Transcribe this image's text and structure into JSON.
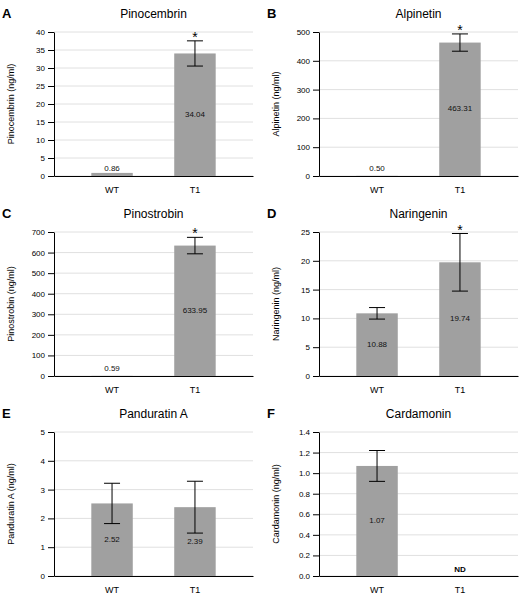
{
  "chart_data": [
    {
      "type": "bar",
      "panel_label": "A",
      "title": "Pinocembrin",
      "ylabel": "Pinocembrin (ng/ml)",
      "categories": [
        "WT",
        "T1"
      ],
      "values": [
        0.86,
        34.04
      ],
      "errors": [
        0.0,
        3.5
      ],
      "value_labels": [
        "0.86",
        "34.04"
      ],
      "significance": [
        null,
        "*"
      ],
      "nd_labels": [
        null,
        null
      ],
      "color": "#a0a0a0",
      "ylim": [
        0,
        40
      ],
      "yticks": [
        0,
        5,
        10,
        15,
        20,
        25,
        30,
        35,
        40
      ],
      "grid": true,
      "data_labels": true
    },
    {
      "type": "bar",
      "panel_label": "B",
      "title": "Alpinetin",
      "ylabel": "Alpinetin (ng/ml)",
      "categories": [
        "WT",
        "T1"
      ],
      "values": [
        0.5,
        463.31
      ],
      "errors": [
        0.0,
        30.0
      ],
      "value_labels": [
        "0.50",
        "463.31"
      ],
      "significance": [
        null,
        "*"
      ],
      "nd_labels": [
        null,
        null
      ],
      "color": "#a0a0a0",
      "ylim": [
        0,
        500
      ],
      "yticks": [
        0,
        100,
        200,
        300,
        400,
        500
      ],
      "grid": true,
      "data_labels": true
    },
    {
      "type": "bar",
      "panel_label": "C",
      "title": "Pinostrobin",
      "ylabel": "Pinostrobin (ng/ml)",
      "categories": [
        "WT",
        "T1"
      ],
      "values": [
        0.59,
        633.95
      ],
      "errors": [
        0.0,
        40.0
      ],
      "value_labels": [
        "0.59",
        "633.95"
      ],
      "significance": [
        null,
        "*"
      ],
      "nd_labels": [
        null,
        null
      ],
      "color": "#a0a0a0",
      "ylim": [
        0,
        700
      ],
      "yticks": [
        0,
        100,
        200,
        300,
        400,
        500,
        600,
        700
      ],
      "grid": true,
      "data_labels": true
    },
    {
      "type": "bar",
      "panel_label": "D",
      "title": "Naringenin",
      "ylabel": "Naringenin (ng/ml)",
      "categories": [
        "WT",
        "T1"
      ],
      "values": [
        10.88,
        19.74
      ],
      "errors": [
        1.0,
        5.0
      ],
      "value_labels": [
        "10.88",
        "19.74"
      ],
      "significance": [
        null,
        "*"
      ],
      "nd_labels": [
        null,
        null
      ],
      "color": "#a0a0a0",
      "ylim": [
        0,
        25
      ],
      "yticks": [
        0,
        5,
        10,
        15,
        20,
        25
      ],
      "grid": true,
      "data_labels": true
    },
    {
      "type": "bar",
      "panel_label": "E",
      "title": "Panduratin A",
      "ylabel": "Panduratin A (ng/ml)",
      "categories": [
        "WT",
        "T1"
      ],
      "values": [
        2.52,
        2.39
      ],
      "errors": [
        0.7,
        0.9
      ],
      "value_labels": [
        "2.52",
        "2.39"
      ],
      "significance": [
        null,
        null
      ],
      "nd_labels": [
        null,
        null
      ],
      "color": "#a0a0a0",
      "ylim": [
        0,
        5
      ],
      "yticks": [
        0,
        1,
        2,
        3,
        4,
        5
      ],
      "grid": true,
      "data_labels": true
    },
    {
      "type": "bar",
      "panel_label": "F",
      "title": "Cardamonin",
      "ylabel": "Cardamonin (ng/ml)",
      "categories": [
        "WT",
        "T1"
      ],
      "values": [
        1.07,
        0.0
      ],
      "errors": [
        0.15,
        0.0
      ],
      "value_labels": [
        "1.07",
        null
      ],
      "significance": [
        null,
        null
      ],
      "nd_labels": [
        null,
        "ND"
      ],
      "color": "#a0a0a0",
      "ylim": [
        0,
        1.4
      ],
      "yticks": [
        {
          "value": 0,
          "label": "0.0"
        },
        0.2,
        0.4,
        0.6,
        0.8,
        {
          "value": 1.0,
          "label": "1.0"
        },
        1.2,
        1.4
      ],
      "grid": true,
      "data_labels": true
    }
  ]
}
